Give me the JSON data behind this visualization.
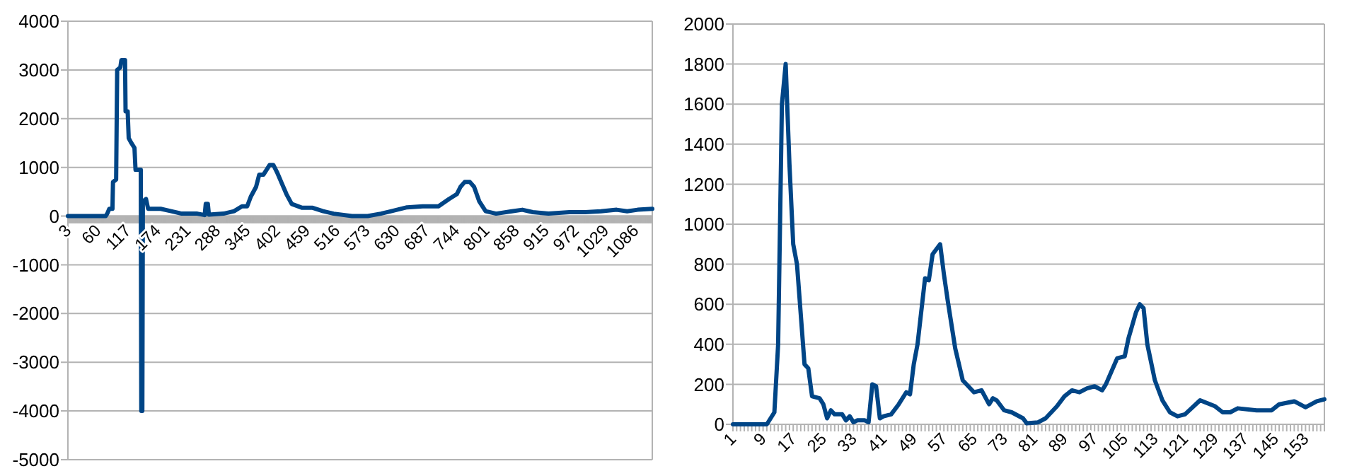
{
  "chart_data": [
    {
      "type": "line",
      "xlim": [
        3,
        1118
      ],
      "xticks": [
        3,
        60,
        117,
        174,
        231,
        288,
        345,
        402,
        459,
        516,
        573,
        630,
        687,
        744,
        801,
        858,
        915,
        972,
        1029,
        1086
      ],
      "ylim": [
        -5000,
        4000
      ],
      "yticks": [
        -5000,
        -4000,
        -3000,
        -2000,
        -1000,
        0,
        1000,
        2000,
        3000,
        4000
      ],
      "grid": "y",
      "series": [
        {
          "color": "#004586",
          "x": [
            3,
            75,
            78,
            82,
            88,
            89,
            95,
            97,
            103,
            105,
            112,
            113,
            117,
            119,
            124,
            130,
            132,
            136,
            142,
            143,
            145,
            146,
            152,
            156,
            180,
            200,
            220,
            250,
            264,
            266,
            270,
            272,
            300,
            320,
            335,
            345,
            352,
            362,
            368,
            376,
            382,
            388,
            395,
            402,
            410,
            420,
            430,
            450,
            470,
            490,
            510,
            545,
            575,
            600,
            620,
            650,
            680,
            710,
            730,
            745,
            752,
            760,
            770,
            778,
            788,
            800,
            820,
            850,
            870,
            890,
            920,
            960,
            990,
            1020,
            1050,
            1070,
            1090,
            1118
          ],
          "values": [
            0,
            0,
            50,
            150,
            150,
            700,
            750,
            3000,
            3050,
            3200,
            3200,
            2150,
            2150,
            1600,
            1500,
            1400,
            950,
            950,
            950,
            -4000,
            -4000,
            300,
            350,
            150,
            150,
            100,
            50,
            50,
            20,
            250,
            250,
            30,
            50,
            100,
            200,
            200,
            400,
            600,
            850,
            850,
            950,
            1050,
            1050,
            900,
            700,
            450,
            250,
            170,
            170,
            100,
            50,
            0,
            0,
            50,
            100,
            180,
            200,
            200,
            350,
            450,
            600,
            700,
            700,
            600,
            300,
            100,
            50,
            100,
            130,
            80,
            50,
            80,
            80,
            100,
            130,
            100,
            130,
            150
          ]
        }
      ]
    },
    {
      "type": "line",
      "xlim": [
        1,
        158
      ],
      "xticks": [
        1,
        9,
        17,
        25,
        33,
        41,
        49,
        57,
        65,
        73,
        81,
        89,
        97,
        105,
        113,
        121,
        129,
        137,
        145,
        153
      ],
      "ylim": [
        0,
        2000
      ],
      "yticks": [
        0,
        200,
        400,
        600,
        800,
        1000,
        1200,
        1400,
        1600,
        1800,
        2000
      ],
      "grid": "y",
      "series": [
        {
          "color": "#004586",
          "x": [
            1,
            10,
            12,
            13,
            14,
            15,
            16,
            17,
            18,
            20,
            21,
            22,
            24,
            25,
            26,
            27,
            28,
            30,
            31,
            32,
            33,
            34,
            36,
            37,
            38,
            39,
            40,
            41,
            43,
            45,
            47,
            48,
            49,
            50,
            52,
            53,
            54,
            56,
            57,
            58,
            60,
            62,
            65,
            67,
            69,
            70,
            71,
            73,
            75,
            78,
            79,
            82,
            84,
            87,
            89,
            91,
            93,
            95,
            97,
            99,
            100,
            103,
            105,
            106,
            108,
            109,
            110,
            111,
            113,
            115,
            117,
            119,
            121,
            125,
            129,
            131,
            133,
            135,
            140,
            142,
            144,
            146,
            150,
            153,
            156,
            158
          ],
          "values": [
            0,
            0,
            60,
            400,
            1600,
            1800,
            1300,
            900,
            800,
            300,
            280,
            140,
            130,
            100,
            30,
            70,
            50,
            50,
            20,
            40,
            10,
            20,
            20,
            10,
            200,
            190,
            30,
            40,
            50,
            100,
            160,
            150,
            300,
            400,
            730,
            720,
            850,
            900,
            750,
            620,
            380,
            220,
            160,
            170,
            100,
            130,
            120,
            70,
            60,
            30,
            5,
            10,
            30,
            90,
            140,
            170,
            160,
            180,
            190,
            170,
            200,
            330,
            340,
            430,
            560,
            600,
            580,
            400,
            220,
            120,
            60,
            40,
            50,
            120,
            90,
            60,
            60,
            80,
            70,
            70,
            70,
            100,
            115,
            85,
            115,
            125
          ]
        }
      ]
    }
  ]
}
